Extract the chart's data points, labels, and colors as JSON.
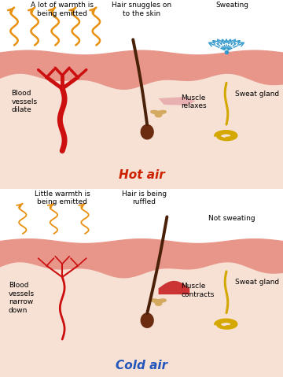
{
  "bg_color": "#ffffff",
  "skin_outer_color": "#e8968a",
  "skin_mid_color": "#f2b8a8",
  "skin_inner_color": "#f7e0d4",
  "hair_color": "#4a2008",
  "hair_bulb_color": "#6b2c10",
  "blood_vessel_color": "#cc1010",
  "muscle_hot_color": "#e8b0b0",
  "muscle_cold_color": "#cc3333",
  "sweat_gland_color": "#d4a800",
  "sweat_arrow_color": "#3399cc",
  "warmth_color": "#e89010",
  "title_hot_color": "#cc2200",
  "title_cold_color": "#2255bb",
  "sebaceous_color": "#d4aa60",
  "panel_hot": {
    "title": "Hot air",
    "label_warmth": "A lot of warmth is\nbeing emitted",
    "label_hair": "Hair snuggles on\nto the skin",
    "label_sweat_title": "Sweating",
    "label_blood": "Blood\nvessels\ndilate",
    "label_muscle": "Muscle\nrelaxes",
    "label_gland": "Sweat gland"
  },
  "panel_cold": {
    "title": "Cold air",
    "label_warmth": "Little warmth is\nbeing emitted",
    "label_hair": "Hair is being\nruffled",
    "label_no_sweat": "Not sweating",
    "label_blood": "Blood\nvessels\nnarrow\ndown",
    "label_muscle": "Muscle\ncontracts",
    "label_gland": "Sweat gland"
  }
}
